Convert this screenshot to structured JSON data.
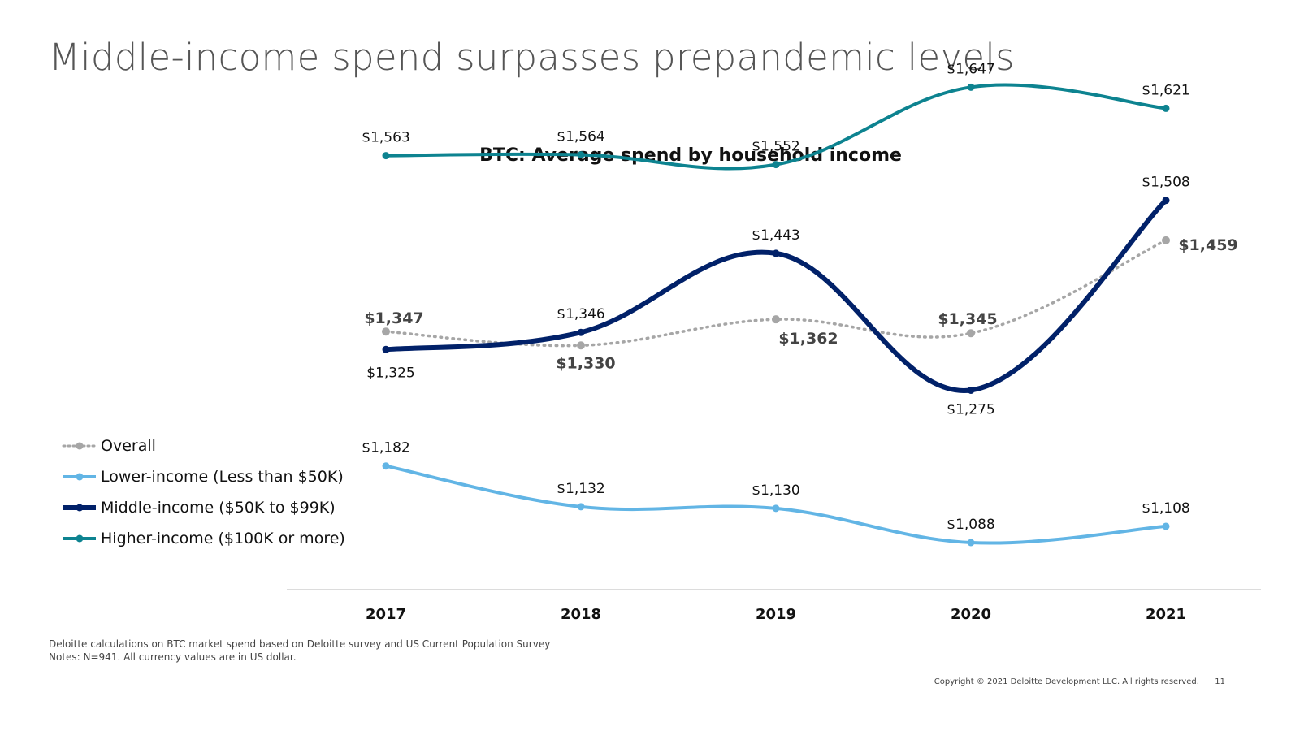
{
  "page": {
    "title": "Middle-income spend surpasses prepandemic levels",
    "footnote_source": "Deloitte calculations on BTC market spend based on Deloitte survey and US Current Population Survey",
    "footnote_notes": "Notes: N=941. All currency values are in US dollar.",
    "copyright": "Copyright © 2021 Deloitte Development LLC. All rights reserved.",
    "separator": "|",
    "page_number": "11"
  },
  "chart_data": {
    "type": "line",
    "title": "BTC: Average spend by household income",
    "xlabel": "",
    "ylabel": "",
    "categories": [
      "2017",
      "2018",
      "2019",
      "2020",
      "2021"
    ],
    "ylim": [
      1050,
      1700
    ],
    "grid": false,
    "legend_position": "left",
    "series": [
      {
        "name": "Overall",
        "key": "overall",
        "color": "#A6A6A6",
        "style": "dotted",
        "label_bold": true,
        "values": [
          1347,
          1330,
          1362,
          1345,
          1459
        ],
        "labels": [
          "$1,347",
          "$1,330",
          "$1,362",
          "$1,345",
          "$1,459"
        ]
      },
      {
        "name": "Lower-income (Less than $50K)",
        "key": "lower",
        "color": "#62B5E5",
        "style": "solid",
        "label_bold": false,
        "values": [
          1182,
          1132,
          1130,
          1088,
          1108
        ],
        "labels": [
          "$1,182",
          "$1,132",
          "$1,130",
          "$1,088",
          "$1,108"
        ]
      },
      {
        "name": "Middle-income ($50K to $99K)",
        "key": "middle",
        "color": "#012169",
        "style": "solid",
        "label_bold": false,
        "values": [
          1325,
          1346,
          1443,
          1275,
          1508
        ],
        "labels": [
          "$1,325",
          "$1,346",
          "$1,443",
          "$1,275",
          "$1,508"
        ]
      },
      {
        "name": "Higher-income ($100K or more)",
        "key": "higher",
        "color": "#0D8390",
        "style": "solid",
        "label_bold": false,
        "values": [
          1563,
          1564,
          1552,
          1647,
          1621
        ],
        "labels": [
          "$1,563",
          "$1,564",
          "$1,552",
          "$1,647",
          "$1,621"
        ]
      }
    ]
  }
}
